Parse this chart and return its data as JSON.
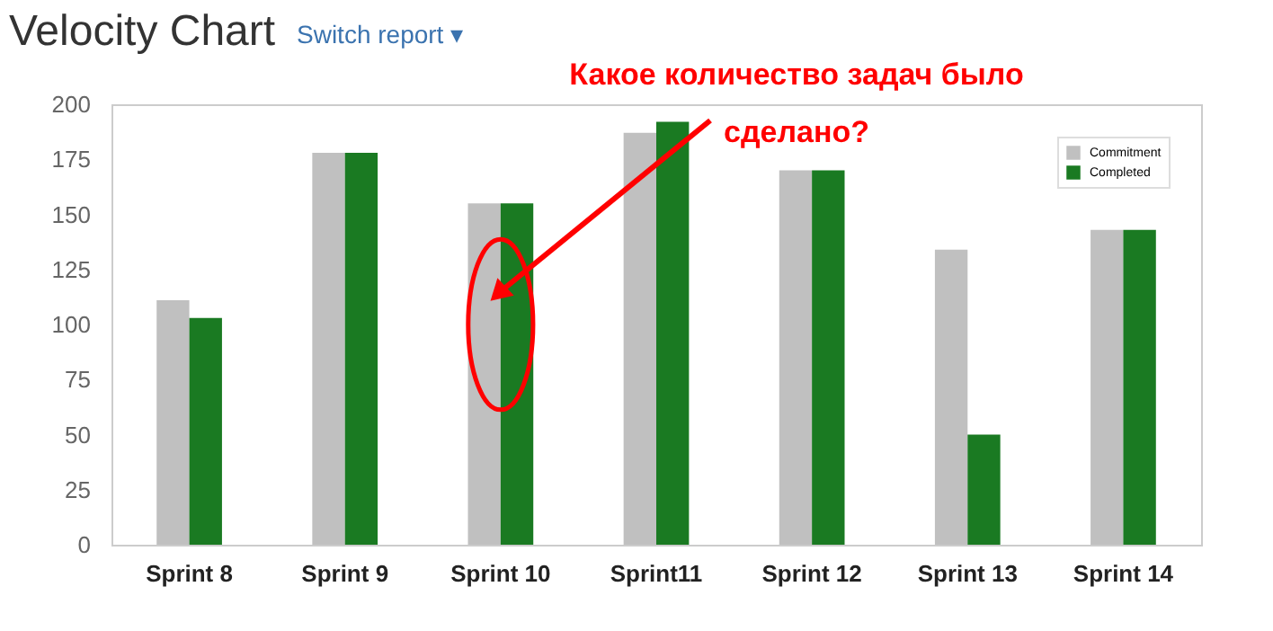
{
  "chart_data": {
    "type": "bar",
    "title": "Velocity Chart",
    "subtitle": "Switch report ▾",
    "categories": [
      "Sprint 8",
      "Sprint 9",
      "Sprint 10",
      "Sprint11",
      "Sprint 12",
      "Sprint 13",
      "Sprint 14"
    ],
    "series": [
      {
        "name": "Commitment",
        "color": "#c0c0c0",
        "values": [
          111,
          178,
          155,
          187,
          170,
          134,
          143
        ]
      },
      {
        "name": "Completed",
        "color": "#1a7a22",
        "values": [
          103,
          178,
          155,
          192,
          170,
          50,
          143
        ]
      }
    ],
    "ylim": [
      0,
      200
    ],
    "yticks": [
      0,
      25,
      50,
      75,
      100,
      125,
      150,
      175,
      200
    ],
    "grid": false,
    "legend": "top right",
    "annotations": [
      {
        "text": "Какое количество задач было сделано?",
        "x": "Sprint 10",
        "y": 115
      }
    ]
  }
}
